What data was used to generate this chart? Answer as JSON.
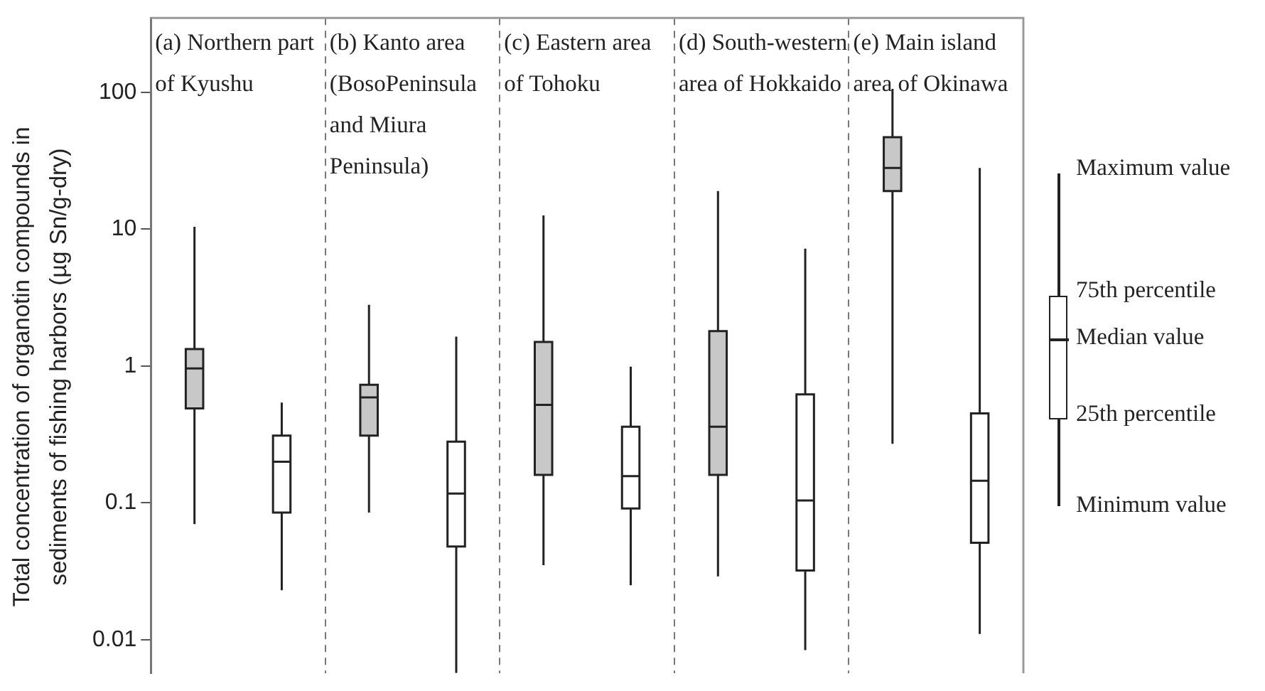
{
  "chart_data": {
    "type": "box",
    "ylabel": "Total concentration of organotin compounds in sediments of fishing harbors  (µg Sn/g-dry)",
    "categories": [
      "(a) Northern part of Kyushu",
      "(b) Kanto area (BosoPeninsula and Miura Peninsula)",
      "(c) Eastern area of Tohoku",
      "(d) South-western area of Hokkaido",
      "(e) Main island area of Okinawa"
    ],
    "series": [
      {
        "color": "#c8c8c8",
        "boxes": [
          {
            "low": 0.07,
            "q1": 0.49,
            "median": 0.96,
            "q3": 1.33,
            "high": 10.4
          },
          {
            "low": 0.085,
            "q1": 0.31,
            "median": 0.59,
            "q3": 0.73,
            "high": 2.8
          },
          {
            "low": 0.035,
            "q1": 0.16,
            "median": 0.52,
            "q3": 1.5,
            "high": 12.6
          },
          {
            "low": 0.029,
            "q1": 0.16,
            "median": 0.36,
            "q3": 1.8,
            "high": 19
          },
          {
            "low": 0.27,
            "q1": 19,
            "median": 28,
            "q3": 47,
            "high": 106
          }
        ]
      },
      {
        "color": "#ffffff",
        "boxes": [
          {
            "low": 0.023,
            "q1": 0.085,
            "median": 0.2,
            "q3": 0.31,
            "high": 0.54
          },
          {
            "low": 0.0057,
            "q1": 0.048,
            "median": 0.117,
            "q3": 0.28,
            "high": 1.64
          },
          {
            "low": 0.025,
            "q1": 0.091,
            "median": 0.157,
            "q3": 0.36,
            "high": 0.99
          },
          {
            "low": 0.0084,
            "q1": 0.032,
            "median": 0.104,
            "q3": 0.62,
            "high": 7.2
          },
          {
            "low": 0.011,
            "q1": 0.051,
            "median": 0.145,
            "q3": 0.45,
            "high": 28
          }
        ]
      }
    ],
    "log": "y",
    "ylim": [
      0.0057,
      350
    ],
    "yticks": [
      0.01,
      0.1,
      1,
      10,
      100
    ],
    "grid": "x",
    "annotations": [
      "Maximum value",
      "75th percentile",
      "Median value",
      "25th percentile",
      "Minimum value"
    ]
  }
}
